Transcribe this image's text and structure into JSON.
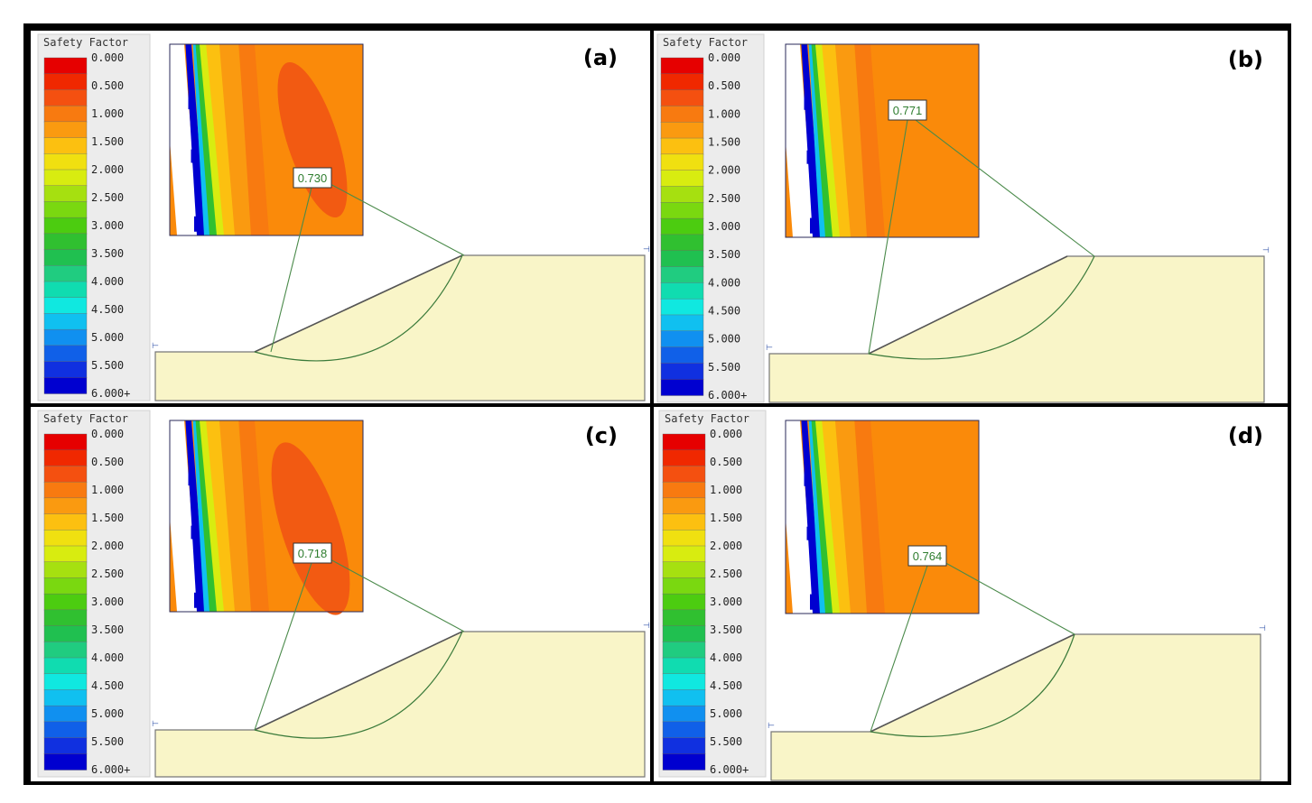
{
  "legend": {
    "title": "Safety Factor",
    "colors": [
      "#e60000",
      "#f02800",
      "#f45010",
      "#f87a10",
      "#fa9a10",
      "#fcc010",
      "#f0e010",
      "#d8ec10",
      "#a6e010",
      "#7ad810",
      "#4ccc10",
      "#30c030",
      "#20c050",
      "#20cc80",
      "#10dcb0",
      "#10e8e0",
      "#10c0f0",
      "#1090f0",
      "#1060e8",
      "#1030e0",
      "#0000d0"
    ],
    "ticks": [
      "0.000",
      "0.500",
      "1.000",
      "1.500",
      "2.000",
      "2.500",
      "3.000",
      "3.500",
      "4.000",
      "4.500",
      "5.000",
      "5.500",
      "6.000+"
    ]
  },
  "panels": [
    {
      "label": "(a)",
      "fos": "0.730"
    },
    {
      "label": "(b)",
      "fos": "0.771"
    },
    {
      "label": "(c)",
      "fos": "0.718"
    },
    {
      "label": "(d)",
      "fos": "0.764"
    }
  ],
  "colors": {
    "soil": "#f9f5c8",
    "inset_background": "#fa8a0a",
    "critical_zone": "#f25a12",
    "leader_line": "#4a8a4a",
    "slip_surface": "#3a7a3a"
  }
}
